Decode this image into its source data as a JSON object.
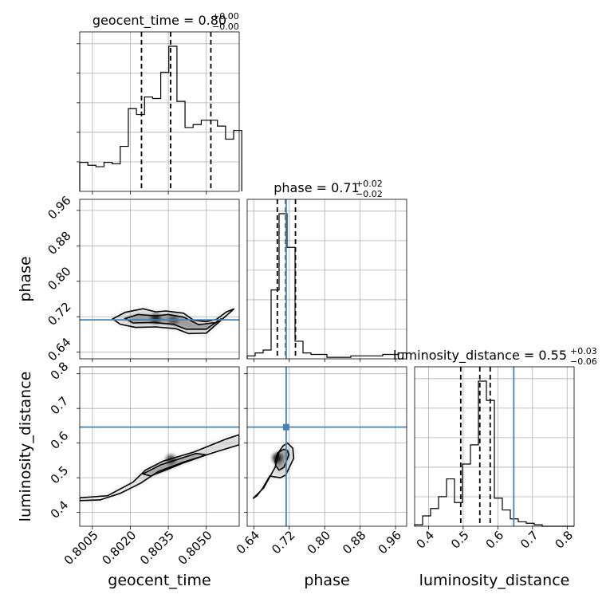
{
  "chart_data": {
    "type": "corner",
    "parameters": [
      {
        "name": "geocent_time",
        "xlabel": "geocent_time",
        "ylabel": "",
        "title_main": "geocent_time = 0.80",
        "title_sup": "+0.00",
        "title_sub": "−0.00",
        "range": [
          0.8,
          0.8063
        ],
        "ticks": [
          0.8005,
          0.802,
          0.8035,
          0.805
        ],
        "tick_labels": [
          "0.8005",
          "0.8020",
          "0.8035",
          "0.8050"
        ],
        "quantiles": [
          0.80244,
          0.80359,
          0.80518
        ],
        "truth": null,
        "hist": {
          "edges": [
            0.8,
            0.80032,
            0.80064,
            0.80096,
            0.80128,
            0.8016,
            0.80192,
            0.80224,
            0.80256,
            0.80288,
            0.8032,
            0.80352,
            0.80384,
            0.80416,
            0.80448,
            0.8048,
            0.80512,
            0.80544,
            0.80576,
            0.80608,
            0.8064
          ],
          "counts": [
            0.2,
            0.18,
            0.17,
            0.2,
            0.19,
            0.31,
            0.57,
            0.53,
            0.65,
            0.64,
            0.82,
            1.0,
            0.62,
            0.44,
            0.46,
            0.49,
            0.49,
            0.45,
            0.36,
            0.42
          ]
        }
      },
      {
        "name": "phase",
        "xlabel": "phase",
        "ylabel": "phase",
        "title_main": "phase = 0.71",
        "title_sup": "+0.02",
        "title_sub": "−0.02",
        "range": [
          0.625,
          0.985
        ],
        "ticks": [
          0.64,
          0.72,
          0.8,
          0.88,
          0.96
        ],
        "tick_labels": [
          "0.64",
          "0.72",
          "0.80",
          "0.88",
          "0.96"
        ],
        "quantiles": [
          0.693,
          0.712,
          0.734
        ],
        "truth": 0.713,
        "hist": {
          "edges": [
            0.625,
            0.643,
            0.661,
            0.679,
            0.697,
            0.715,
            0.733,
            0.751,
            0.769,
            0.787,
            0.805,
            0.823,
            0.841,
            0.859,
            0.877,
            0.895,
            0.913,
            0.931,
            0.949,
            0.967,
            0.985
          ],
          "counts": [
            0.02,
            0.04,
            0.06,
            0.47,
            0.99,
            0.76,
            0.12,
            0.04,
            0.03,
            0.03,
            0.01,
            0.01,
            0.01,
            0.02,
            0.02,
            0.02,
            0.02,
            0.03,
            0.03,
            0.04
          ]
        }
      },
      {
        "name": "luminosity_distance",
        "xlabel": "luminosity_distance",
        "ylabel": "luminosity_distance",
        "title_main": "luminosity_distance = 0.55",
        "title_sup": "+0.03",
        "title_sub": "−0.06",
        "range": [
          0.36,
          0.82
        ],
        "ticks": [
          0.4,
          0.5,
          0.6,
          0.7,
          0.8
        ],
        "tick_labels": [
          "0.4",
          "0.5",
          "0.6",
          "0.7",
          "0.8"
        ],
        "quantiles": [
          0.493,
          0.548,
          0.578
        ],
        "truth": 0.646,
        "hist": {
          "edges": [
            0.36,
            0.383,
            0.406,
            0.429,
            0.452,
            0.475,
            0.498,
            0.521,
            0.544,
            0.567,
            0.59,
            0.613,
            0.636,
            0.659,
            0.682,
            0.705,
            0.728,
            0.751,
            0.774,
            0.797,
            0.82
          ],
          "counts": [
            0.01,
            0.07,
            0.12,
            0.2,
            0.32,
            0.16,
            0.42,
            0.55,
            0.98,
            0.85,
            0.19,
            0.11,
            0.05,
            0.03,
            0.02,
            0.01,
            0.0,
            0.0,
            0.0,
            0.0
          ]
        }
      }
    ],
    "pairs": [
      {
        "x": "geocent_time",
        "y": "phase",
        "truth_y": 0.713,
        "contours": [
          [
            [
              0.8013,
              0.715
            ],
            [
              0.8018,
              0.73
            ],
            [
              0.8025,
              0.738
            ],
            [
              0.803,
              0.731
            ],
            [
              0.8034,
              0.733
            ],
            [
              0.8041,
              0.728
            ],
            [
              0.8045,
              0.712
            ],
            [
              0.805,
              0.709
            ],
            [
              0.8054,
              0.714
            ],
            [
              0.8058,
              0.731
            ],
            [
              0.8061,
              0.738
            ],
            [
              0.8056,
              0.713
            ],
            [
              0.805,
              0.683
            ],
            [
              0.8043,
              0.682
            ],
            [
              0.8038,
              0.693
            ],
            [
              0.803,
              0.697
            ],
            [
              0.8022,
              0.696
            ],
            [
              0.8016,
              0.703
            ]
          ],
          [
            [
              0.8018,
              0.716
            ],
            [
              0.8023,
              0.725
            ],
            [
              0.803,
              0.722
            ],
            [
              0.8035,
              0.725
            ],
            [
              0.8041,
              0.719
            ],
            [
              0.8047,
              0.702
            ],
            [
              0.8054,
              0.707
            ],
            [
              0.8056,
              0.716
            ],
            [
              0.805,
              0.692
            ],
            [
              0.8042,
              0.692
            ],
            [
              0.8037,
              0.703
            ],
            [
              0.8029,
              0.707
            ],
            [
              0.8021,
              0.706
            ]
          ]
        ],
        "cores": [
          {
            "x": 0.8037,
            "y": 0.712,
            "r": 0.5
          },
          {
            "x": 0.803,
            "y": 0.716,
            "r": 0.8
          }
        ]
      },
      {
        "x": "geocent_time",
        "y": "luminosity_distance",
        "truth_y": 0.646,
        "contours": [
          [
            [
              0.8,
              0.442
            ],
            [
              0.8011,
              0.448
            ],
            [
              0.8021,
              0.487
            ],
            [
              0.8026,
              0.522
            ],
            [
              0.8033,
              0.548
            ],
            [
              0.8045,
              0.574
            ],
            [
              0.8058,
              0.612
            ],
            [
              0.8063,
              0.624
            ],
            [
              0.8063,
              0.595
            ],
            [
              0.8054,
              0.575
            ],
            [
              0.8041,
              0.545
            ],
            [
              0.8031,
              0.518
            ],
            [
              0.8024,
              0.484
            ],
            [
              0.8016,
              0.455
            ],
            [
              0.8008,
              0.436
            ],
            [
              0.8,
              0.434
            ]
          ],
          [
            [
              0.8025,
              0.511
            ],
            [
              0.8032,
              0.537
            ],
            [
              0.804,
              0.556
            ],
            [
              0.8046,
              0.57
            ],
            [
              0.805,
              0.566
            ],
            [
              0.8041,
              0.543
            ],
            [
              0.8035,
              0.525
            ],
            [
              0.8028,
              0.505
            ]
          ]
        ],
        "cores": [
          {
            "x": 0.8036,
            "y": 0.553,
            "r": 0.7
          }
        ]
      },
      {
        "x": "phase",
        "y": "luminosity_distance",
        "truth_x": 0.713,
        "truth_y": 0.646,
        "contours": [
          [
            [
              0.638,
              0.44
            ],
            [
              0.662,
              0.47
            ],
            [
              0.688,
              0.53
            ],
            [
              0.697,
              0.575
            ],
            [
              0.706,
              0.592
            ],
            [
              0.716,
              0.6
            ],
            [
              0.728,
              0.585
            ],
            [
              0.73,
              0.556
            ],
            [
              0.712,
              0.508
            ],
            [
              0.7,
              0.5
            ],
            [
              0.676,
              0.505
            ],
            [
              0.66,
              0.47
            ],
            [
              0.647,
              0.448
            ]
          ],
          [
            [
              0.688,
              0.548
            ],
            [
              0.694,
              0.572
            ],
            [
              0.708,
              0.582
            ],
            [
              0.716,
              0.578
            ],
            [
              0.719,
              0.566
            ],
            [
              0.708,
              0.53
            ],
            [
              0.697,
              0.522
            ],
            [
              0.69,
              0.534
            ]
          ]
        ],
        "cores": [
          {
            "x": 0.693,
            "y": 0.557,
            "r": 0.9
          }
        ]
      }
    ]
  }
}
